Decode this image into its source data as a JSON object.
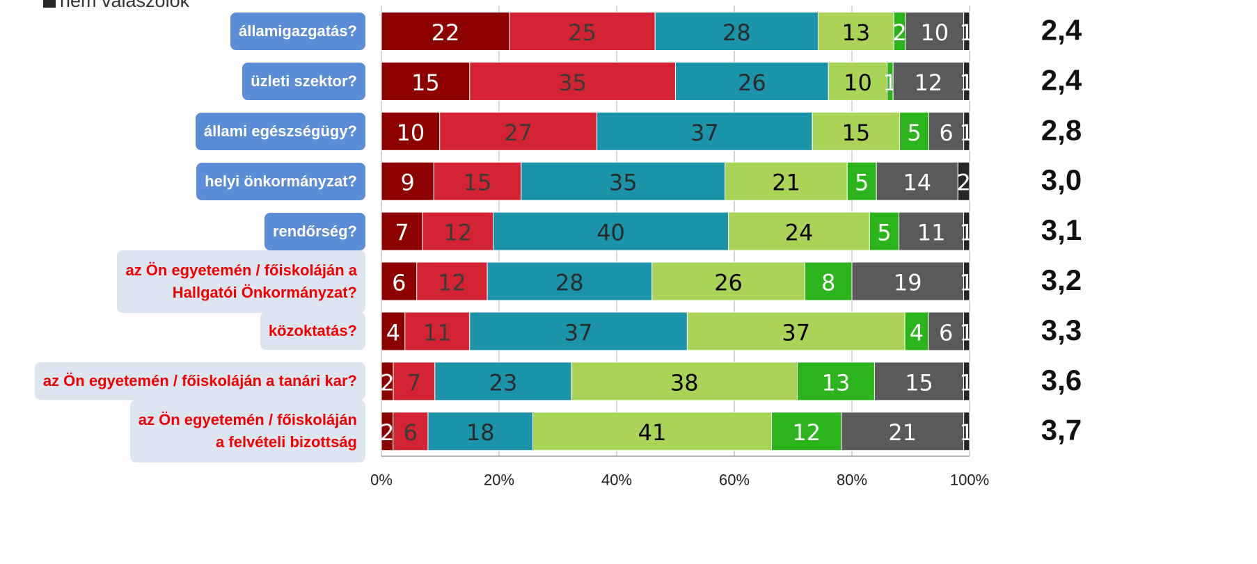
{
  "chart_data": {
    "type": "stacked_bar",
    "orientation": "horizontal",
    "stacking": "percent",
    "categories": [
      "államigazgatás?",
      "üzleti szektor?",
      "állami egészségügy?",
      "helyi önkormányzat?",
      "rendőrség?",
      "az Ön egyetemén / főiskoláján a\nHallgatói Önkormányzat?",
      "közoktatás?",
      "az Ön egyetemén / főiskoláján a tanári kar?",
      "az Ön egyetemén / főiskoláján\na felvételi bizottság"
    ],
    "series": [
      {
        "color": "#8c0000",
        "values": [
          22,
          15,
          10,
          9,
          7,
          6,
          4,
          2,
          2
        ]
      },
      {
        "color": "#d42433",
        "values": [
          25,
          35,
          27,
          15,
          12,
          12,
          11,
          7,
          6
        ]
      },
      {
        "color": "#1b93a8",
        "values": [
          28,
          26,
          37,
          35,
          40,
          28,
          37,
          23,
          18
        ]
      },
      {
        "color": "#aad457",
        "values": [
          13,
          10,
          15,
          21,
          24,
          26,
          37,
          38,
          41
        ]
      },
      {
        "color": "#2bb41c",
        "values": [
          2,
          1,
          5,
          5,
          5,
          8,
          4,
          13,
          12
        ]
      },
      {
        "color": "#5a5a5a",
        "values": [
          10,
          12,
          6,
          14,
          11,
          19,
          6,
          15,
          21
        ]
      },
      {
        "name": "nem válaszolok",
        "color": "#262626",
        "values": [
          1,
          1,
          1,
          2,
          1,
          1,
          1,
          1,
          1
        ]
      }
    ],
    "scores": [
      "2,4",
      "2,4",
      "2,8",
      "3,0",
      "3,1",
      "3,2",
      "3,3",
      "3,6",
      "3,7"
    ],
    "xlim": [
      0,
      100
    ],
    "xticks": [
      {
        "value": 0,
        "label": "0%"
      },
      {
        "value": 20,
        "label": "20%"
      },
      {
        "value": 40,
        "label": "40%"
      },
      {
        "value": 60,
        "label": "60%"
      },
      {
        "value": 80,
        "label": "80%"
      },
      {
        "value": 100,
        "label": "100%"
      }
    ],
    "grid": true
  }
}
